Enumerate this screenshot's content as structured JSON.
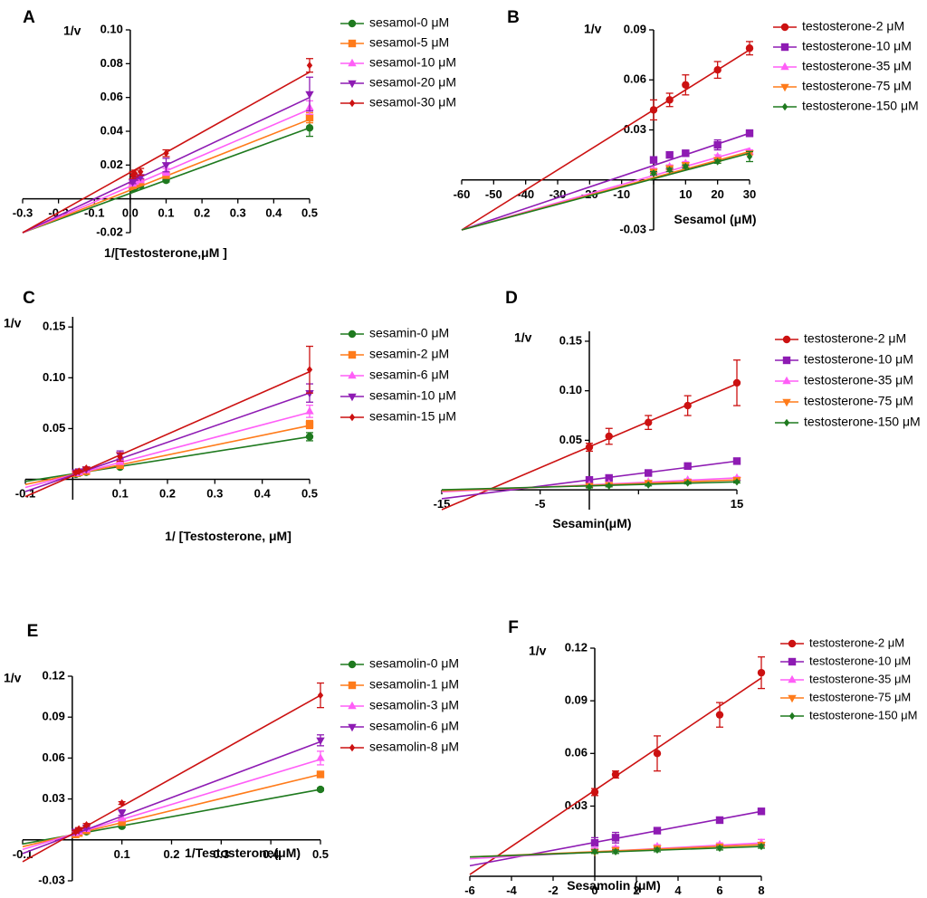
{
  "colors": {
    "red": "#cc1111",
    "purple": "#8e1bb3",
    "pink": "#ff5ef7",
    "orange": "#ff7b1a",
    "green": "#1f7a1f"
  },
  "chart_data": [
    {
      "id": "A",
      "type": "line",
      "panel_label": "A",
      "title": "",
      "ylabel": "1/v",
      "xlabel": "1/[Testosterone,μM ]",
      "xlim": [
        -0.3,
        0.5
      ],
      "ylim": [
        -0.02,
        0.1
      ],
      "xticks": [
        -0.3,
        -0.2,
        -0.1,
        0.0,
        0.1,
        0.2,
        0.3,
        0.4,
        0.5
      ],
      "xtick_labels": [
        "-0.3",
        "-0.2",
        "-0.1",
        "0.0",
        "0.1",
        "0.2",
        "0.3",
        "0.4",
        "0.5"
      ],
      "yticks": [
        -0.02,
        0.02,
        0.04,
        0.06,
        0.08,
        0.1
      ],
      "ytick_labels": [
        "-0.02",
        "0.02",
        "0.04",
        "0.06",
        "0.08",
        "0.10"
      ],
      "x": [
        0.0067,
        0.0133,
        0.0286,
        0.1,
        0.5
      ],
      "line_x": [
        -0.3,
        0.5
      ],
      "legend_position": "right",
      "series": [
        {
          "name": "sesamol-0 μM",
          "marker": "circle",
          "color_key": "green",
          "values": [
            0.006,
            0.007,
            0.008,
            0.011,
            0.042
          ],
          "errors": [
            0.001,
            0.001,
            0.001,
            0.001,
            0.005
          ],
          "line": [
            -0.02,
            0.042
          ]
        },
        {
          "name": "sesamol-5 μM",
          "marker": "square",
          "color_key": "orange",
          "values": [
            0.008,
            0.009,
            0.01,
            0.014,
            0.048
          ],
          "errors": [
            0.001,
            0.001,
            0.001,
            0.001,
            0.003
          ],
          "line": [
            -0.02,
            0.047
          ]
        },
        {
          "name": "sesamol-10 μM",
          "marker": "triangle-up",
          "color_key": "pink",
          "values": [
            0.009,
            0.01,
            0.011,
            0.016,
            0.054
          ],
          "errors": [
            0.001,
            0.001,
            0.001,
            0.002,
            0.004
          ],
          "line": [
            -0.02,
            0.053
          ]
        },
        {
          "name": "sesamol-20 μM",
          "marker": "triangle-down",
          "color_key": "purple",
          "values": [
            0.01,
            0.012,
            0.013,
            0.02,
            0.062
          ],
          "errors": [
            0.001,
            0.001,
            0.001,
            0.004,
            0.01
          ],
          "line": [
            -0.02,
            0.06
          ]
        },
        {
          "name": "sesamol-30 μM",
          "marker": "diamond",
          "color_key": "red",
          "values": [
            0.014,
            0.015,
            0.016,
            0.027,
            0.079
          ],
          "errors": [
            0.002,
            0.002,
            0.002,
            0.002,
            0.004
          ],
          "line": [
            -0.02,
            0.075
          ]
        }
      ]
    },
    {
      "id": "B",
      "type": "line",
      "panel_label": "B",
      "title": "",
      "ylabel": "1/v",
      "xlabel": "Sesamol (μM)",
      "xlim": [
        -60,
        30
      ],
      "ylim": [
        -0.03,
        0.09
      ],
      "xticks": [
        -60,
        -50,
        -40,
        -30,
        -20,
        -10,
        0,
        10,
        20,
        30
      ],
      "xtick_labels": [
        "-60",
        "-50",
        "-40",
        "-30",
        "-20",
        "-10",
        "",
        "10",
        "20",
        "30"
      ],
      "yticks": [
        -0.03,
        0.03,
        0.06,
        0.09
      ],
      "ytick_labels": [
        "-0.03",
        "0.03",
        "0.06",
        "0.09"
      ],
      "x": [
        0,
        5,
        10,
        20,
        30
      ],
      "line_x": [
        -60,
        30
      ],
      "legend_position": "right",
      "series": [
        {
          "name": "testosterone-2 μM",
          "marker": "circle",
          "color_key": "red",
          "values": [
            0.042,
            0.048,
            0.057,
            0.066,
            0.079
          ],
          "errors": [
            0.006,
            0.004,
            0.006,
            0.005,
            0.004
          ],
          "line": [
            -0.03,
            0.078
          ]
        },
        {
          "name": "testosterone-10 μM",
          "marker": "square",
          "color_key": "purple",
          "values": [
            0.012,
            0.015,
            0.016,
            0.021,
            0.028
          ],
          "errors": [
            0.001,
            0.001,
            0.001,
            0.003,
            0.002
          ],
          "line": [
            -0.03,
            0.028
          ]
        },
        {
          "name": "testosterone-35 μM",
          "marker": "triangle-up",
          "color_key": "pink",
          "values": [
            0.006,
            0.008,
            0.01,
            0.014,
            0.017
          ],
          "errors": [
            0.001,
            0.001,
            0.001,
            0.001,
            0.001
          ],
          "line": [
            -0.03,
            0.019
          ]
        },
        {
          "name": "testosterone-75 μM",
          "marker": "triangle-down",
          "color_key": "orange",
          "values": [
            0.005,
            0.007,
            0.009,
            0.012,
            0.016
          ],
          "errors": [
            0.001,
            0.001,
            0.001,
            0.001,
            0.001
          ],
          "line": [
            -0.03,
            0.017
          ]
        },
        {
          "name": "testosterone-150 μM",
          "marker": "diamond",
          "color_key": "green",
          "values": [
            0.004,
            0.006,
            0.008,
            0.011,
            0.014
          ],
          "errors": [
            0.001,
            0.001,
            0.001,
            0.001,
            0.003
          ],
          "line": [
            -0.03,
            0.016
          ]
        }
      ]
    },
    {
      "id": "C",
      "type": "line",
      "panel_label": "C",
      "title": "",
      "ylabel": "1/v",
      "xlabel": "1/ [Testosterone, μM]",
      "xlim": [
        -0.1,
        0.5
      ],
      "ylim": [
        -0.02,
        0.16
      ],
      "xticks": [
        -0.1,
        0.1,
        0.2,
        0.3,
        0.4,
        0.5
      ],
      "xtick_labels": [
        "-0.1",
        "0.1",
        "0.2",
        "0.3",
        "0.4",
        "0.5"
      ],
      "yticks": [
        0.05,
        0.1,
        0.15
      ],
      "ytick_labels": [
        "0.05",
        "0.10",
        "0.15"
      ],
      "x": [
        0.0067,
        0.0133,
        0.0286,
        0.1,
        0.5
      ],
      "line_x": [
        -0.1,
        0.5
      ],
      "legend_position": "right",
      "series": [
        {
          "name": "sesamin-0 μM",
          "marker": "circle",
          "color_key": "green",
          "values": [
            0.005,
            0.006,
            0.007,
            0.012,
            0.042
          ],
          "errors": [
            0.001,
            0.001,
            0.001,
            0.001,
            0.004
          ],
          "line": [
            -0.002,
            0.042
          ]
        },
        {
          "name": "sesamin-2 μM",
          "marker": "square",
          "color_key": "orange",
          "values": [
            0.006,
            0.007,
            0.008,
            0.014,
            0.054
          ],
          "errors": [
            0.001,
            0.001,
            0.001,
            0.002,
            0.004
          ],
          "line": [
            -0.005,
            0.053
          ]
        },
        {
          "name": "sesamin-6 μM",
          "marker": "triangle-up",
          "color_key": "pink",
          "values": [
            0.006,
            0.007,
            0.009,
            0.017,
            0.067
          ],
          "errors": [
            0.001,
            0.001,
            0.001,
            0.002,
            0.006
          ],
          "line": [
            -0.008,
            0.066
          ]
        },
        {
          "name": "sesamin-10 μM",
          "marker": "triangle-down",
          "color_key": "purple",
          "values": [
            0.007,
            0.008,
            0.01,
            0.024,
            0.085
          ],
          "errors": [
            0.001,
            0.001,
            0.001,
            0.004,
            0.009
          ],
          "line": [
            -0.012,
            0.085
          ]
        },
        {
          "name": "sesamin-15 μM",
          "marker": "diamond",
          "color_key": "red",
          "values": [
            0.007,
            0.008,
            0.011,
            0.022,
            0.108
          ],
          "errors": [
            0.001,
            0.001,
            0.001,
            0.004,
            0.023
          ],
          "line": [
            -0.017,
            0.106
          ]
        }
      ]
    },
    {
      "id": "D",
      "type": "line",
      "panel_label": "D",
      "title": "",
      "ylabel": "1/v",
      "xlabel": "Sesamin(μM)",
      "xlim": [
        -15,
        15
      ],
      "ylim": [
        -0.02,
        0.16
      ],
      "xticks": [
        -15,
        -5,
        5,
        15
      ],
      "xtick_labels": [
        "-15",
        "-5",
        "",
        "15"
      ],
      "yticks": [
        0.05,
        0.1,
        0.15
      ],
      "ytick_labels": [
        "0.05",
        "0.10",
        "0.15"
      ],
      "x": [
        0,
        2,
        6,
        10,
        15
      ],
      "line_x": [
        -15,
        15
      ],
      "legend_position": "right",
      "series": [
        {
          "name": "testosterone-2 μM",
          "marker": "circle",
          "color_key": "red",
          "values": [
            0.043,
            0.054,
            0.068,
            0.085,
            0.108
          ],
          "errors": [
            0.004,
            0.008,
            0.007,
            0.01,
            0.023
          ],
          "line": [
            -0.02,
            0.107
          ]
        },
        {
          "name": "testosterone-10 μM",
          "marker": "square",
          "color_key": "purple",
          "values": [
            0.01,
            0.012,
            0.017,
            0.024,
            0.029
          ],
          "errors": [
            0.001,
            0.001,
            0.001,
            0.003,
            0.001
          ],
          "line": [
            -0.009,
            0.029
          ]
        },
        {
          "name": "testosterone-35 μM",
          "marker": "triangle-up",
          "color_key": "pink",
          "values": [
            0.005,
            0.006,
            0.008,
            0.01,
            0.012
          ],
          "errors": [
            0.001,
            0.001,
            0.001,
            0.001,
            0.001
          ],
          "line": [
            -0.002,
            0.012
          ]
        },
        {
          "name": "testosterone-75 μM",
          "marker": "triangle-down",
          "color_key": "orange",
          "values": [
            0.004,
            0.005,
            0.007,
            0.008,
            0.01
          ],
          "errors": [
            0.001,
            0.001,
            0.001,
            0.001,
            0.001
          ],
          "line": [
            -0.001,
            0.01
          ]
        },
        {
          "name": "testosterone-150 μM",
          "marker": "diamond",
          "color_key": "green",
          "values": [
            0.003,
            0.004,
            0.005,
            0.007,
            0.008
          ],
          "errors": [
            0.001,
            0.001,
            0.001,
            0.001,
            0.001
          ],
          "line": [
            0.0,
            0.008
          ]
        }
      ]
    },
    {
      "id": "E",
      "type": "line",
      "panel_label": "E",
      "title": "",
      "ylabel": "1/v",
      "xlabel": "1/Testosterone(μM)",
      "xlim": [
        -0.1,
        0.5
      ],
      "ylim": [
        -0.03,
        0.12
      ],
      "xticks": [
        -0.1,
        0.1,
        0.2,
        0.3,
        0.4,
        0.5
      ],
      "xtick_labels": [
        "-0.1",
        "0.1",
        "0.2",
        "0.3",
        "0.4",
        "0.5"
      ],
      "yticks": [
        -0.03,
        0.03,
        0.06,
        0.09,
        0.12
      ],
      "ytick_labels": [
        "-0.03",
        "0.03",
        "0.06",
        "0.09",
        "0.12"
      ],
      "x": [
        0.0067,
        0.0133,
        0.0286,
        0.1,
        0.5
      ],
      "line_x": [
        -0.1,
        0.5
      ],
      "legend_position": "right",
      "series": [
        {
          "name": "sesamolin-0 μM",
          "marker": "circle",
          "color_key": "green",
          "values": [
            0.004,
            0.005,
            0.006,
            0.01,
            0.037
          ],
          "errors": [
            0.001,
            0.001,
            0.001,
            0.001,
            0.001
          ],
          "line": [
            -0.003,
            0.037
          ]
        },
        {
          "name": "sesamolin-1 μM",
          "marker": "square",
          "color_key": "orange",
          "values": [
            0.004,
            0.005,
            0.007,
            0.013,
            0.048
          ],
          "errors": [
            0.001,
            0.001,
            0.001,
            0.001,
            0.001
          ],
          "line": [
            -0.005,
            0.048
          ]
        },
        {
          "name": "sesamolin-3 μM",
          "marker": "triangle-up",
          "color_key": "pink",
          "values": [
            0.005,
            0.006,
            0.008,
            0.016,
            0.06
          ],
          "errors": [
            0.001,
            0.001,
            0.001,
            0.002,
            0.005
          ],
          "line": [
            -0.007,
            0.059
          ]
        },
        {
          "name": "sesamolin-6 μM",
          "marker": "triangle-down",
          "color_key": "purple",
          "values": [
            0.006,
            0.007,
            0.009,
            0.02,
            0.073
          ],
          "errors": [
            0.001,
            0.001,
            0.001,
            0.002,
            0.004
          ],
          "line": [
            -0.01,
            0.072
          ]
        },
        {
          "name": "sesamolin-8 μM",
          "marker": "diamond",
          "color_key": "red",
          "values": [
            0.006,
            0.008,
            0.011,
            0.027,
            0.106
          ],
          "errors": [
            0.001,
            0.001,
            0.001,
            0.001,
            0.009
          ],
          "line": [
            -0.016,
            0.106
          ]
        }
      ]
    },
    {
      "id": "F",
      "type": "line",
      "panel_label": "F",
      "title": "",
      "ylabel": "1/v",
      "xlabel": "Sesamolin (μM)",
      "xlim": [
        -6,
        8
      ],
      "ylim": [
        -0.01,
        0.12
      ],
      "xticks": [
        -6,
        -4,
        -2,
        0,
        2,
        4,
        6,
        8
      ],
      "xtick_labels": [
        "-6",
        "-4",
        "-2",
        "0",
        "2",
        "4",
        "6",
        "8"
      ],
      "yticks": [
        0.03,
        0.06,
        0.09,
        0.12
      ],
      "ytick_labels": [
        "0.03",
        "0.06",
        "0.09",
        "0.12"
      ],
      "x": [
        0,
        1,
        3,
        6,
        8
      ],
      "line_x": [
        -6,
        8
      ],
      "legend_position": "top-right",
      "series": [
        {
          "name": "testosterone-2 μM",
          "marker": "circle",
          "color_key": "red",
          "values": [
            0.038,
            0.048,
            0.06,
            0.082,
            0.106
          ],
          "errors": [
            0.002,
            0.002,
            0.01,
            0.007,
            0.009
          ],
          "line": [
            -0.009,
            0.103
          ]
        },
        {
          "name": "testosterone-10 μM",
          "marker": "square",
          "color_key": "purple",
          "values": [
            0.009,
            0.012,
            0.016,
            0.022,
            0.027
          ],
          "errors": [
            0.003,
            0.003,
            0.001,
            0.001,
            0.001
          ],
          "line": [
            -0.004,
            0.027
          ]
        },
        {
          "name": "testosterone-35 μM",
          "marker": "triangle-up",
          "color_key": "pink",
          "values": [
            0.005,
            0.006,
            0.007,
            0.008,
            0.009
          ],
          "errors": [
            0.001,
            0.001,
            0.001,
            0.001,
            0.002
          ],
          "line": [
            0.0,
            0.009
          ]
        },
        {
          "name": "testosterone-75 μM",
          "marker": "triangle-down",
          "color_key": "orange",
          "values": [
            0.004,
            0.005,
            0.006,
            0.007,
            0.008
          ],
          "errors": [
            0.001,
            0.001,
            0.001,
            0.001,
            0.001
          ],
          "line": [
            0.001,
            0.008
          ]
        },
        {
          "name": "testosterone-150 μM",
          "marker": "diamond",
          "color_key": "green",
          "values": [
            0.004,
            0.004,
            0.005,
            0.006,
            0.007
          ],
          "errors": [
            0.001,
            0.001,
            0.001,
            0.001,
            0.001
          ],
          "line": [
            0.001,
            0.007
          ]
        }
      ]
    }
  ]
}
